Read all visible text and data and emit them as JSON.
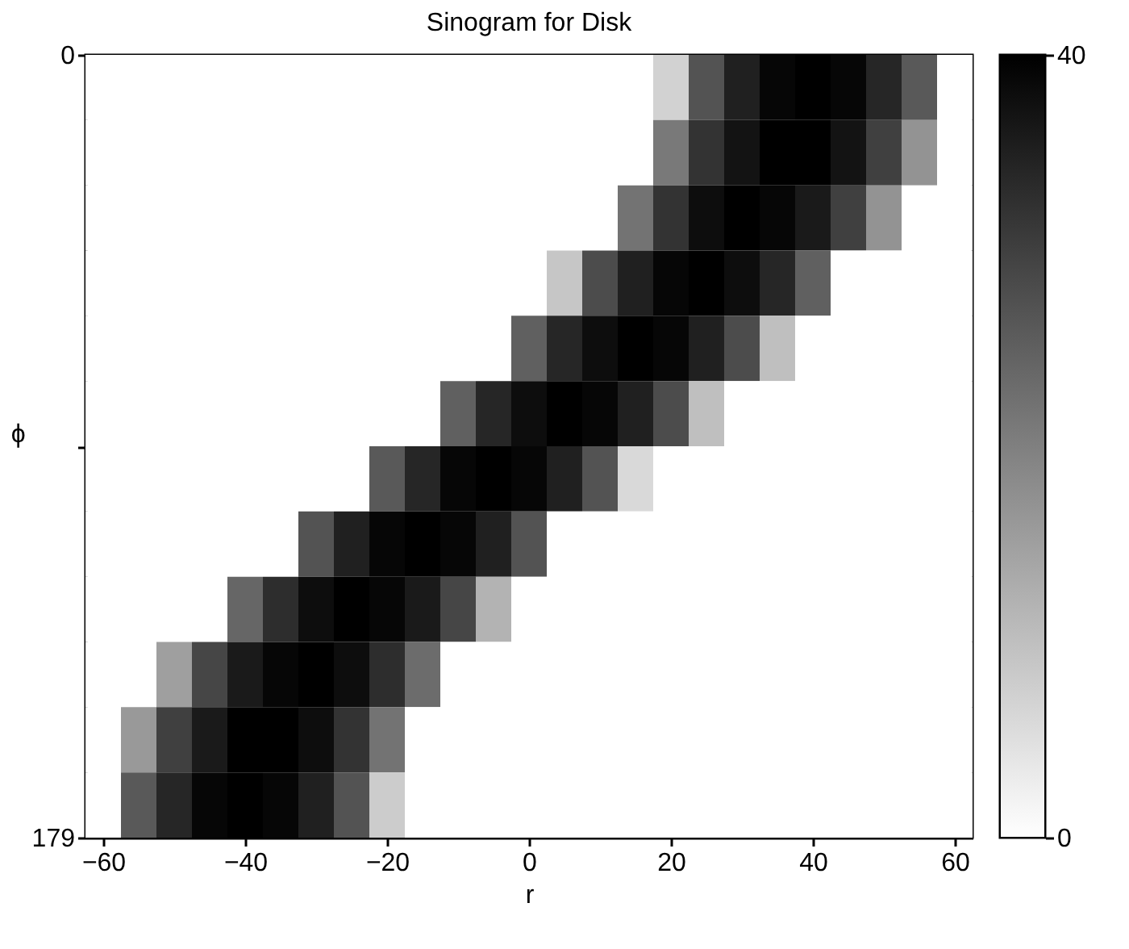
{
  "chart_data": {
    "type": "heatmap",
    "title": "Sinogram for Disk",
    "xlabel": "r",
    "ylabel": "ϕ",
    "x": [
      -60,
      -55,
      -50,
      -45,
      -40,
      -35,
      -30,
      -25,
      -20,
      -15,
      -10,
      -5,
      0,
      5,
      10,
      15,
      20,
      25,
      30,
      35,
      40,
      45,
      50,
      55,
      60
    ],
    "xlim": [
      -62.5,
      62.5
    ],
    "xticks": [
      -60,
      -40,
      -20,
      0,
      20,
      40,
      60
    ],
    "ylim": [
      179,
      0
    ],
    "yticks": [
      0,
      {
        "value": 89.5,
        "label": null
      },
      179
    ],
    "clim": [
      0,
      40
    ],
    "cticks": [
      0,
      40
    ],
    "colors": [
      "#ffffff",
      "#000000"
    ],
    "grid": false,
    "cells": [
      [
        0,
        0,
        0,
        0,
        0,
        0,
        0,
        0,
        0,
        0,
        0,
        0,
        0,
        0,
        0,
        0,
        7,
        27,
        35,
        39,
        40,
        39,
        34,
        26,
        0
      ],
      [
        0,
        0,
        0,
        0,
        0,
        0,
        0,
        0,
        0,
        0,
        0,
        0,
        0,
        0,
        0,
        0,
        21,
        32,
        37,
        40,
        40,
        37,
        30,
        17,
        0
      ],
      [
        0,
        0,
        0,
        0,
        0,
        0,
        0,
        0,
        0,
        0,
        0,
        0,
        0,
        0,
        0,
        22,
        32,
        38,
        40,
        39,
        36,
        30,
        17,
        0,
        0
      ],
      [
        0,
        0,
        0,
        0,
        0,
        0,
        0,
        0,
        0,
        0,
        0,
        0,
        0,
        9,
        28,
        35,
        39,
        40,
        38,
        34,
        25,
        0,
        0,
        0,
        0
      ],
      [
        0,
        0,
        0,
        0,
        0,
        0,
        0,
        0,
        0,
        0,
        0,
        0,
        25,
        34,
        38,
        40,
        39,
        35,
        28,
        10,
        0,
        0,
        0,
        0,
        0
      ],
      [
        0,
        0,
        0,
        0,
        0,
        0,
        0,
        0,
        0,
        0,
        25,
        34,
        38,
        40,
        39,
        35,
        28,
        10,
        0,
        0,
        0,
        0,
        0,
        0,
        0
      ],
      [
        0,
        0,
        0,
        0,
        0,
        0,
        0,
        0,
        26,
        34,
        39,
        40,
        39,
        35,
        27,
        6,
        0,
        0,
        0,
        0,
        0,
        0,
        0,
        0,
        0
      ],
      [
        0,
        0,
        0,
        0,
        0,
        0,
        27,
        35,
        39,
        40,
        39,
        35,
        27,
        0,
        0,
        0,
        0,
        0,
        0,
        0,
        0,
        0,
        0,
        0,
        0
      ],
      [
        0,
        0,
        0,
        0,
        24,
        33,
        38,
        40,
        39,
        36,
        29,
        12,
        0,
        0,
        0,
        0,
        0,
        0,
        0,
        0,
        0,
        0,
        0,
        0,
        0
      ],
      [
        0,
        0,
        15,
        29,
        36,
        39,
        40,
        38,
        33,
        23,
        0,
        0,
        0,
        0,
        0,
        0,
        0,
        0,
        0,
        0,
        0,
        0,
        0,
        0,
        0
      ],
      [
        0,
        16,
        30,
        36,
        40,
        40,
        38,
        32,
        22,
        0,
        0,
        0,
        0,
        0,
        0,
        0,
        0,
        0,
        0,
        0,
        0,
        0,
        0,
        0,
        0
      ],
      [
        0,
        26,
        34,
        39,
        40,
        39,
        35,
        27,
        8,
        0,
        0,
        0,
        0,
        0,
        0,
        0,
        0,
        0,
        0,
        0,
        0,
        0,
        0,
        0,
        0
      ]
    ]
  }
}
